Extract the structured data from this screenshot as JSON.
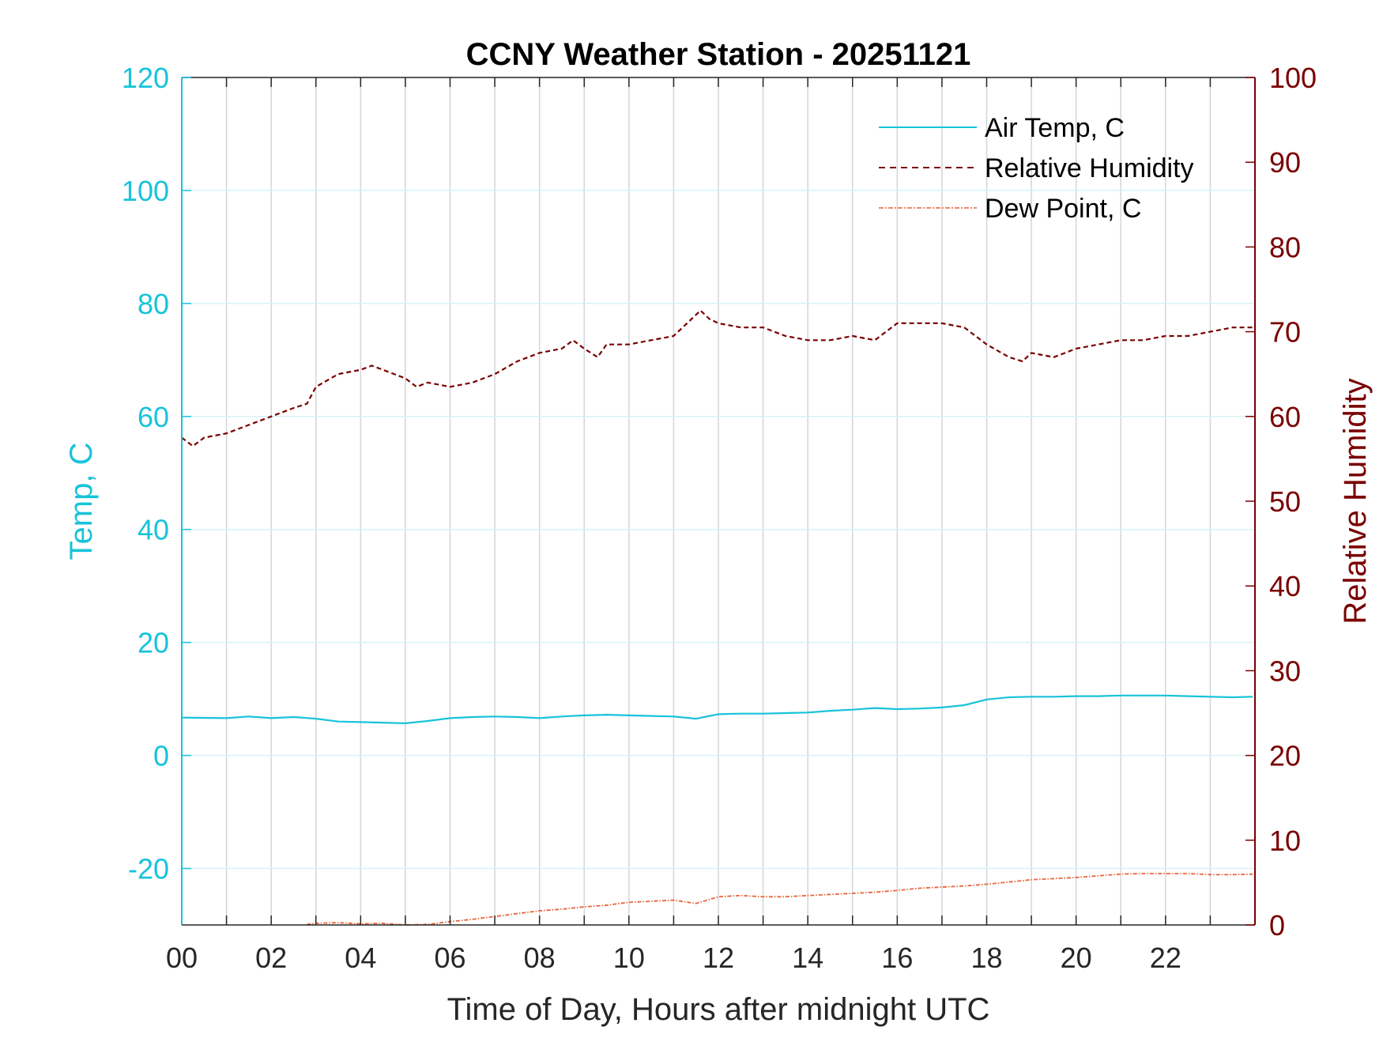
{
  "chart_data": {
    "type": "line",
    "title": "CCNY Weather Station - 20251121",
    "xlabel": "Time of Day, Hours after midnight UTC",
    "ylabel_left": "Temp, C",
    "ylabel_right": "Relative Humidity",
    "xlim": [
      0,
      24
    ],
    "ylim_left": [
      -30,
      120
    ],
    "ylim_right": [
      0,
      100
    ],
    "x_ticks": [
      0,
      2,
      4,
      6,
      8,
      10,
      12,
      14,
      16,
      18,
      20,
      22
    ],
    "x_tick_labels": [
      "00",
      "02",
      "04",
      "06",
      "08",
      "10",
      "12",
      "14",
      "16",
      "18",
      "20",
      "22"
    ],
    "y_left_ticks": [
      120,
      100,
      80,
      60,
      40,
      20,
      0,
      -20
    ],
    "y_left_tick_labels": [
      "120",
      "100",
      "80",
      "60",
      "40",
      "20",
      "0",
      "-20"
    ],
    "y_right_ticks": [
      100,
      90,
      80,
      70,
      60,
      50,
      40,
      30,
      20,
      10,
      0
    ],
    "y_right_tick_labels": [
      "100",
      "90",
      "80",
      "70",
      "60",
      "50",
      "40",
      "30",
      "20",
      "10",
      "0"
    ],
    "grid": true,
    "legend_position": "top-right",
    "colors": {
      "left_axis": "#17c3da",
      "right_axis": "#7a0000",
      "dew_point": "#e8643a"
    },
    "series": [
      {
        "name": "Air Temp, C",
        "axis": "left",
        "style": "solid",
        "color": "#17c3da",
        "x": [
          0,
          1,
          1.5,
          2,
          2.5,
          3,
          3.5,
          4,
          4.5,
          5,
          5.5,
          6,
          6.5,
          7,
          7.5,
          8,
          8.5,
          9,
          9.5,
          10,
          10.5,
          11,
          11.5,
          12,
          12.5,
          13,
          13.5,
          14,
          14.5,
          15,
          15.5,
          16,
          16.5,
          17,
          17.5,
          18,
          18.5,
          19,
          19.5,
          20,
          20.5,
          21,
          21.5,
          22,
          22.5,
          23,
          23.5,
          23.95
        ],
        "y": [
          6.7,
          6.6,
          6.9,
          6.6,
          6.8,
          6.5,
          6.0,
          5.9,
          5.8,
          5.7,
          6.1,
          6.6,
          6.8,
          6.9,
          6.8,
          6.6,
          6.9,
          7.1,
          7.2,
          7.1,
          7.0,
          6.9,
          6.5,
          7.3,
          7.4,
          7.4,
          7.5,
          7.6,
          7.9,
          8.1,
          8.4,
          8.2,
          8.3,
          8.5,
          8.9,
          9.9,
          10.3,
          10.4,
          10.4,
          10.5,
          10.5,
          10.6,
          10.6,
          10.6,
          10.5,
          10.4,
          10.3,
          10.4
        ]
      },
      {
        "name": "Relative Humidity",
        "axis": "right",
        "style": "dashed",
        "color": "#7a0000",
        "x": [
          0,
          0.25,
          0.5,
          1,
          1.5,
          2,
          2.5,
          2.8,
          3,
          3.5,
          4,
          4.25,
          4.5,
          5,
          5.25,
          5.5,
          6,
          6.5,
          7,
          7.5,
          8,
          8.5,
          8.75,
          9,
          9.3,
          9.5,
          10,
          10.5,
          11,
          11.3,
          11.6,
          11.8,
          12,
          12.5,
          13,
          13.5,
          14,
          14.5,
          15,
          15.5,
          16,
          16.5,
          17,
          17.5,
          18,
          18.5,
          18.8,
          19,
          19.5,
          20,
          20.5,
          21,
          21.5,
          22,
          22.5,
          23,
          23.5,
          23.95
        ],
        "y": [
          57.5,
          56.5,
          57.5,
          58.0,
          59.0,
          60.0,
          61.0,
          61.5,
          63.5,
          65.0,
          65.5,
          66.0,
          65.5,
          64.5,
          63.5,
          64.0,
          63.5,
          64.0,
          65.0,
          66.5,
          67.5,
          68.0,
          69.0,
          68.0,
          67.0,
          68.5,
          68.5,
          69.0,
          69.5,
          71.0,
          72.5,
          71.5,
          71.0,
          70.5,
          70.5,
          69.5,
          69.0,
          69.0,
          69.5,
          69.0,
          71.0,
          71.0,
          71.0,
          70.5,
          68.5,
          67.0,
          66.5,
          67.5,
          67.0,
          68.0,
          68.5,
          69.0,
          69.0,
          69.5,
          69.5,
          70.0,
          70.5,
          70.5
        ]
      },
      {
        "name": "Dew Point, C",
        "axis": "left",
        "style": "dash-dot",
        "color": "#e8643a",
        "x": [
          2.8,
          3,
          3.5,
          4,
          4.5,
          5,
          5.5,
          6,
          6.5,
          7,
          7.5,
          8,
          8.5,
          9,
          9.5,
          10,
          10.5,
          11,
          11.5,
          12,
          12.5,
          13,
          13.5,
          14,
          14.5,
          15,
          15.5,
          16,
          16.5,
          17,
          17.5,
          18,
          18.5,
          19,
          19.5,
          20,
          20.5,
          21,
          21.5,
          22,
          22.5,
          23,
          23.5,
          23.95
        ],
        "y": [
          -29.9,
          -29.7,
          -29.6,
          -29.8,
          -29.7,
          -30.0,
          -29.9,
          -29.4,
          -29.0,
          -28.5,
          -28.0,
          -27.5,
          -27.2,
          -26.8,
          -26.5,
          -26.0,
          -25.8,
          -25.6,
          -26.2,
          -25.0,
          -24.8,
          -25.0,
          -25.0,
          -24.8,
          -24.6,
          -24.4,
          -24.2,
          -23.9,
          -23.5,
          -23.3,
          -23.1,
          -22.8,
          -22.4,
          -22.0,
          -21.8,
          -21.6,
          -21.3,
          -21.0,
          -20.9,
          -20.9,
          -20.9,
          -21.1,
          -21.1,
          -21.0
        ]
      }
    ]
  }
}
